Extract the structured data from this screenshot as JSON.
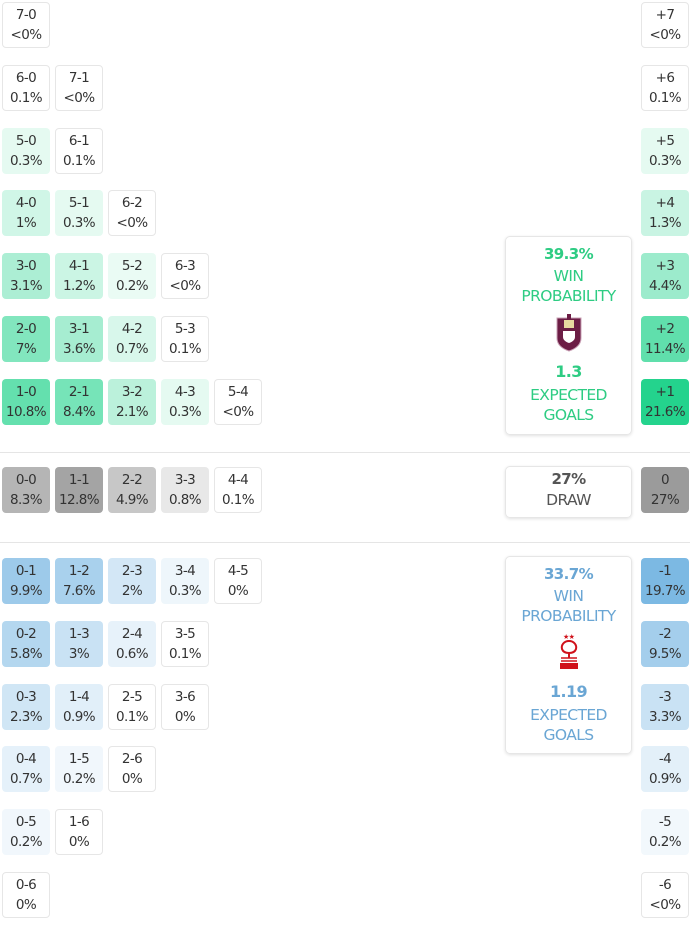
{
  "colors": {
    "home": "#22d38c",
    "home_text": "#2ecc83",
    "away": "#7bb8e3",
    "away_text": "#6aa6d4",
    "draw": "#999999"
  },
  "home_scores": [
    [
      {
        "score": "7-0",
        "pct": "<0%"
      }
    ],
    [
      {
        "score": "6-0",
        "pct": "0.1%"
      },
      {
        "score": "7-1",
        "pct": "<0%"
      }
    ],
    [
      {
        "score": "5-0",
        "pct": "0.3%"
      },
      {
        "score": "6-1",
        "pct": "0.1%"
      }
    ],
    [
      {
        "score": "4-0",
        "pct": "1%"
      },
      {
        "score": "5-1",
        "pct": "0.3%"
      },
      {
        "score": "6-2",
        "pct": "<0%"
      }
    ],
    [
      {
        "score": "3-0",
        "pct": "3.1%"
      },
      {
        "score": "4-1",
        "pct": "1.2%"
      },
      {
        "score": "5-2",
        "pct": "0.2%"
      },
      {
        "score": "6-3",
        "pct": "<0%"
      }
    ],
    [
      {
        "score": "2-0",
        "pct": "7%"
      },
      {
        "score": "3-1",
        "pct": "3.6%"
      },
      {
        "score": "4-2",
        "pct": "0.7%"
      },
      {
        "score": "5-3",
        "pct": "0.1%"
      }
    ],
    [
      {
        "score": "1-0",
        "pct": "10.8%"
      },
      {
        "score": "2-1",
        "pct": "8.4%"
      },
      {
        "score": "3-2",
        "pct": "2.1%"
      },
      {
        "score": "4-3",
        "pct": "0.3%"
      },
      {
        "score": "5-4",
        "pct": "<0%"
      }
    ]
  ],
  "draw_scores": [
    {
      "score": "0-0",
      "pct": "8.3%"
    },
    {
      "score": "1-1",
      "pct": "12.8%"
    },
    {
      "score": "2-2",
      "pct": "4.9%"
    },
    {
      "score": "3-3",
      "pct": "0.8%"
    },
    {
      "score": "4-4",
      "pct": "0.1%"
    }
  ],
  "away_scores": [
    [
      {
        "score": "0-1",
        "pct": "9.9%"
      },
      {
        "score": "1-2",
        "pct": "7.6%"
      },
      {
        "score": "2-3",
        "pct": "2%"
      },
      {
        "score": "3-4",
        "pct": "0.3%"
      },
      {
        "score": "4-5",
        "pct": "0%"
      }
    ],
    [
      {
        "score": "0-2",
        "pct": "5.8%"
      },
      {
        "score": "1-3",
        "pct": "3%"
      },
      {
        "score": "2-4",
        "pct": "0.6%"
      },
      {
        "score": "3-5",
        "pct": "0.1%"
      }
    ],
    [
      {
        "score": "0-3",
        "pct": "2.3%"
      },
      {
        "score": "1-4",
        "pct": "0.9%"
      },
      {
        "score": "2-5",
        "pct": "0.1%"
      },
      {
        "score": "3-6",
        "pct": "0%"
      }
    ],
    [
      {
        "score": "0-4",
        "pct": "0.7%"
      },
      {
        "score": "1-5",
        "pct": "0.2%"
      },
      {
        "score": "2-6",
        "pct": "0%"
      }
    ],
    [
      {
        "score": "0-5",
        "pct": "0.2%"
      },
      {
        "score": "1-6",
        "pct": "0%"
      }
    ],
    [
      {
        "score": "0-6",
        "pct": "0%"
      }
    ]
  ],
  "home_margins": [
    {
      "score": "+7",
      "pct": "<0%"
    },
    {
      "score": "+6",
      "pct": "0.1%"
    },
    {
      "score": "+5",
      "pct": "0.3%"
    },
    {
      "score": "+4",
      "pct": "1.3%"
    },
    {
      "score": "+3",
      "pct": "4.4%"
    },
    {
      "score": "+2",
      "pct": "11.4%"
    },
    {
      "score": "+1",
      "pct": "21.6%"
    }
  ],
  "draw_margin": {
    "score": "0",
    "pct": "27%"
  },
  "away_margins": [
    {
      "score": "-1",
      "pct": "19.7%"
    },
    {
      "score": "-2",
      "pct": "9.5%"
    },
    {
      "score": "-3",
      "pct": "3.3%"
    },
    {
      "score": "-4",
      "pct": "0.9%"
    },
    {
      "score": "-5",
      "pct": "0.2%"
    },
    {
      "score": "-6",
      "pct": "<0%"
    }
  ],
  "home_card": {
    "win_pct": "39.3%",
    "win_label_1": "WIN",
    "win_label_2": "PROBABILITY",
    "xg": "1.3",
    "xg_label_1": "EXPECTED",
    "xg_label_2": "GOALS",
    "crest": "burnley-crest"
  },
  "draw_card": {
    "pct": "27%",
    "label": "DRAW"
  },
  "away_card": {
    "win_pct": "33.7%",
    "win_label_1": "WIN",
    "win_label_2": "PROBABILITY",
    "xg": "1.19",
    "xg_label_1": "EXPECTED",
    "xg_label_2": "GOALS",
    "crest": "nottingham-forest-crest"
  }
}
